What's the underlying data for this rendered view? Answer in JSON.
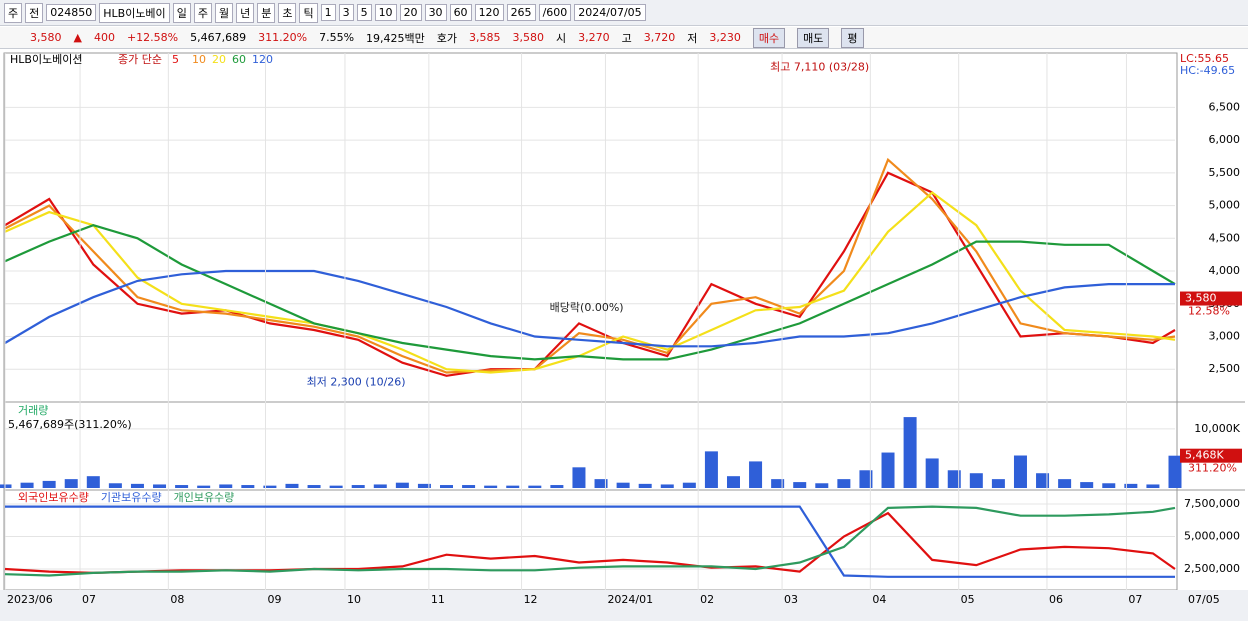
{
  "toolbar": {
    "items": [
      "주",
      "전",
      "024850",
      "HLB이노베이",
      "일",
      "주",
      "월",
      "년",
      "분",
      "초",
      "틱",
      "1",
      "3",
      "5",
      "10",
      "20",
      "30",
      "60",
      "120",
      "265",
      "/600",
      "2024/07/05"
    ]
  },
  "info_bar": {
    "price": "3,580",
    "arrow": "▲",
    "change": "400",
    "change_pct": "+12.58%",
    "volume": "5,467,689",
    "volume_pct": "311.20%",
    "turnover": "7.55%",
    "amount": "19,425백만",
    "quote_label": "호가",
    "ask": "3,585",
    "bid": "3,580",
    "open_label": "시",
    "open": "3,270",
    "high_label": "고",
    "high": "3,720",
    "low_label": "저",
    "low": "3,230",
    "buy": "매수",
    "sell": "매도",
    "avg": "평"
  },
  "chart_data": [
    {
      "type": "line",
      "title": "HLB이노베이션",
      "subtitle": "종가 단순",
      "lc": "LC:55.65",
      "hc": "HC:-49.65",
      "x": [
        0,
        10,
        20,
        30,
        40,
        50,
        60,
        70,
        80,
        90,
        100,
        110,
        120,
        130,
        140,
        150,
        160,
        170,
        180,
        190,
        200,
        210,
        220,
        230,
        240,
        250,
        260,
        265
      ],
      "xlim": [
        0,
        265
      ],
      "ylim": [
        2030,
        7300
      ],
      "yticks": [
        {
          "value": 2500,
          "label": "2,500"
        },
        {
          "value": 3000,
          "label": "3,000"
        },
        {
          "value": 3500,
          "label": "3,500"
        },
        {
          "value": 4000,
          "label": "4,000"
        },
        {
          "value": 4500,
          "label": "4,500"
        },
        {
          "value": 5000,
          "label": "5,000"
        },
        {
          "value": 5500,
          "label": "5,500"
        },
        {
          "value": 6000,
          "label": "6,000"
        },
        {
          "value": 6500,
          "label": "6,500"
        }
      ],
      "series": [
        {
          "name": "5",
          "color": "#e01010",
          "values": [
            4700,
            5100,
            4100,
            3500,
            3350,
            3400,
            3200,
            3100,
            2950,
            2600,
            2400,
            2500,
            2500,
            3200,
            2900,
            2700,
            3800,
            3500,
            3300,
            4300,
            5500,
            5200,
            4100,
            3000,
            3050,
            3000,
            2900,
            3100
          ]
        },
        {
          "name": "10",
          "color": "#f08a1c",
          "values": [
            4650,
            5000,
            4300,
            3600,
            3400,
            3350,
            3250,
            3150,
            3000,
            2700,
            2450,
            2480,
            2500,
            3050,
            2950,
            2750,
            3500,
            3600,
            3350,
            4000,
            5700,
            5100,
            4300,
            3200,
            3050,
            3000,
            2950,
            3000
          ]
        },
        {
          "name": "20",
          "color": "#f4e01a",
          "values": [
            4600,
            4900,
            4700,
            3900,
            3500,
            3400,
            3300,
            3200,
            3050,
            2800,
            2500,
            2450,
            2500,
            2700,
            3000,
            2800,
            3100,
            3400,
            3450,
            3700,
            4600,
            5200,
            4700,
            3700,
            3100,
            3050,
            3000,
            2950
          ]
        },
        {
          "name": "60",
          "color": "#1e9a3a",
          "values": [
            4150,
            4450,
            4700,
            4500,
            4100,
            3800,
            3500,
            3200,
            3050,
            2900,
            2800,
            2700,
            2650,
            2700,
            2650,
            2650,
            2800,
            3000,
            3200,
            3500,
            3800,
            4100,
            4450,
            4450,
            4400,
            4400,
            4000,
            3800
          ]
        },
        {
          "name": "120",
          "color": "#2f5fd8",
          "values": [
            2900,
            3300,
            3600,
            3850,
            3950,
            4000,
            4000,
            4000,
            3850,
            3650,
            3450,
            3200,
            3000,
            2950,
            2900,
            2850,
            2850,
            2900,
            3000,
            3000,
            3050,
            3200,
            3400,
            3600,
            3750,
            3800,
            3800,
            3800
          ]
        }
      ],
      "last_price": {
        "value": 3580,
        "label": "3,580"
      },
      "last_change": "12.58%",
      "annotations": [
        {
          "text": "최고 7,110 (03/28)",
          "x": 198,
          "y": 7110
        },
        {
          "text": "최저 2,300 (10/26)",
          "x": 93,
          "y": 2300
        },
        {
          "text": "배당락(0.00%)",
          "x": 134,
          "y": 3250
        }
      ]
    },
    {
      "type": "bar",
      "title": "거래량",
      "subtitle": "5,467,689주(311.20%)",
      "color": "#2f5fd8",
      "x": [
        0,
        5,
        10,
        15,
        20,
        25,
        30,
        35,
        40,
        45,
        50,
        55,
        60,
        65,
        70,
        75,
        80,
        85,
        90,
        95,
        100,
        105,
        110,
        115,
        120,
        125,
        130,
        135,
        140,
        145,
        150,
        155,
        160,
        165,
        170,
        175,
        180,
        185,
        190,
        195,
        200,
        205,
        210,
        215,
        220,
        225,
        230,
        235,
        240,
        245,
        250,
        255,
        260,
        265
      ],
      "values": [
        600,
        900,
        1200,
        1500,
        2000,
        800,
        700,
        600,
        500,
        400,
        600,
        500,
        400,
        700,
        500,
        400,
        500,
        600,
        900,
        700,
        500,
        500,
        400,
        400,
        400,
        500,
        3500,
        1500,
        900,
        700,
        600,
        900,
        6200,
        2000,
        4500,
        1500,
        1000,
        800,
        1500,
        3000,
        6000,
        12000,
        5000,
        3000,
        2500,
        1500,
        5500,
        2500,
        1500,
        1000,
        800,
        700,
        600,
        5468
      ],
      "xlim": [
        0,
        265
      ],
      "ylim": [
        0,
        13200
      ],
      "yticks": [
        {
          "value": 10000,
          "label": "10,000K"
        }
      ],
      "last": {
        "value": 5468,
        "label": "5,468K"
      },
      "last_change": "311.20%"
    },
    {
      "type": "line",
      "x": [
        0,
        10,
        20,
        30,
        40,
        50,
        60,
        70,
        80,
        90,
        100,
        110,
        120,
        130,
        140,
        150,
        160,
        170,
        180,
        190,
        200,
        210,
        220,
        230,
        240,
        250,
        260,
        265
      ],
      "xlim": [
        0,
        265
      ],
      "ylim": [
        885000,
        8190000
      ],
      "yticks": [
        {
          "value": 2500000,
          "label": "2,500,000"
        },
        {
          "value": 5000000,
          "label": "5,000,000"
        },
        {
          "value": 7500000,
          "label": "7,500,000"
        }
      ],
      "xticks": [
        {
          "value": 0,
          "label": "2023/06"
        },
        {
          "value": 17,
          "label": "07"
        },
        {
          "value": 37,
          "label": "08"
        },
        {
          "value": 59,
          "label": "09"
        },
        {
          "value": 77,
          "label": "10"
        },
        {
          "value": 96,
          "label": "11"
        },
        {
          "value": 117,
          "label": "12"
        },
        {
          "value": 136,
          "label": "2024/01"
        },
        {
          "value": 157,
          "label": "02"
        },
        {
          "value": 176,
          "label": "03"
        },
        {
          "value": 196,
          "label": "04"
        },
        {
          "value": 216,
          "label": "05"
        },
        {
          "value": 236,
          "label": "06"
        },
        {
          "value": 254,
          "label": "07"
        }
      ],
      "x_end_label": "07/05",
      "series": [
        {
          "name": "외국인보유수량",
          "color": "#e01010",
          "values": [
            2500000,
            2300000,
            2200000,
            2300000,
            2400000,
            2400000,
            2400000,
            2500000,
            2500000,
            2700000,
            3600000,
            3300000,
            3500000,
            3000000,
            3200000,
            3000000,
            2600000,
            2700000,
            2300000,
            5000000,
            6800000,
            3200000,
            2800000,
            4000000,
            4200000,
            4100000,
            3700000,
            2500000
          ]
        },
        {
          "name": "기관보유수량",
          "color": "#2f5fd8",
          "values": [
            7300000,
            7300000,
            7300000,
            7300000,
            7300000,
            7300000,
            7300000,
            7300000,
            7300000,
            7300000,
            7300000,
            7300000,
            7300000,
            7300000,
            7300000,
            7300000,
            7300000,
            7300000,
            7300000,
            2000000,
            1900000,
            1900000,
            1900000,
            1900000,
            1900000,
            1900000,
            1900000,
            1900000
          ]
        },
        {
          "name": "개인보유수량",
          "color": "#2e9a5e",
          "values": [
            2100000,
            2000000,
            2200000,
            2300000,
            2300000,
            2400000,
            2300000,
            2500000,
            2400000,
            2500000,
            2500000,
            2400000,
            2400000,
            2600000,
            2700000,
            2700000,
            2700000,
            2500000,
            3000000,
            4200000,
            7200000,
            7300000,
            7200000,
            6600000,
            6600000,
            6700000,
            6900000,
            7200000
          ]
        }
      ]
    }
  ]
}
